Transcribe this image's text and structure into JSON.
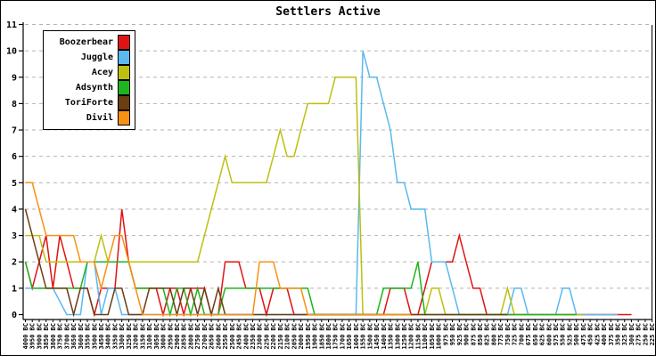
{
  "title": "Settlers Active",
  "legend": {
    "entries": [
      {
        "label": "Boozerbear",
        "color": "#e01313"
      },
      {
        "label": "Juggle",
        "color": "#5bb8f0"
      },
      {
        "label": "Acey",
        "color": "#bfbf10"
      },
      {
        "label": "Adsynth",
        "color": "#1db51d"
      },
      {
        "label": "ToriForte",
        "color": "#6b3d13"
      },
      {
        "label": "Divil",
        "color": "#f89113"
      }
    ]
  },
  "chart_data": {
    "type": "line",
    "title": "Settlers Active",
    "grid": "dashed-horizontal",
    "legend_position": "top-left",
    "ylim": [
      0,
      11
    ],
    "y_axis": {
      "min": 0,
      "max": 11,
      "tick_step": 1
    },
    "x_axis": {
      "unit": "game year (BC), one tick per turn",
      "labels": [
        "4000 BC",
        "3950 BC",
        "3900 BC",
        "3850 BC",
        "3800 BC",
        "3750 BC",
        "3700 BC",
        "3650 BC",
        "3600 BC",
        "3550 BC",
        "3500 BC",
        "3450 BC",
        "3400 BC",
        "3350 BC",
        "3300 BC",
        "3250 BC",
        "3200 BC",
        "3150 BC",
        "3100 BC",
        "3050 BC",
        "3000 BC",
        "2950 BC",
        "2900 BC",
        "2850 BC",
        "2800 BC",
        "2750 BC",
        "2700 BC",
        "2650 BC",
        "2600 BC",
        "2550 BC",
        "2500 BC",
        "2450 BC",
        "2400 BC",
        "2350 BC",
        "2300 BC",
        "2250 BC",
        "2200 BC",
        "2150 BC",
        "2100 BC",
        "2050 BC",
        "2000 BC",
        "1950 BC",
        "1900 BC",
        "1850 BC",
        "1800 BC",
        "1750 BC",
        "1700 BC",
        "1650 BC",
        "1600 BC",
        "1550 BC",
        "1500 BC",
        "1450 BC",
        "1400 BC",
        "1350 BC",
        "1300 BC",
        "1250 BC",
        "1200 BC",
        "1150 BC",
        "1100 BC",
        "1050 BC",
        "1000 BC",
        "975 BC",
        "950 BC",
        "925 BC",
        "900 BC",
        "875 BC",
        "850 BC",
        "825 BC",
        "800 BC",
        "775 BC",
        "750 BC",
        "725 BC",
        "700 BC",
        "675 BC",
        "650 BC",
        "625 BC",
        "600 BC",
        "575 BC",
        "550 BC",
        "525 BC",
        "500 BC",
        "475 BC",
        "450 BC",
        "425 BC",
        "400 BC",
        "375 BC",
        "350 BC",
        "325 BC",
        "300 BC",
        "275 BC",
        "250 BC",
        "225 BC"
      ]
    },
    "series": [
      {
        "name": "Boozerbear",
        "color": "#e01313",
        "points": [
          [
            0,
            2
          ],
          [
            1,
            1
          ],
          [
            3,
            3
          ],
          [
            4,
            1
          ],
          [
            5,
            3
          ],
          [
            6,
            2
          ],
          [
            7,
            1
          ],
          [
            9,
            1
          ],
          [
            10,
            0
          ],
          [
            11,
            1
          ],
          [
            13,
            1
          ],
          [
            14,
            4
          ],
          [
            15,
            2
          ],
          [
            16,
            1
          ],
          [
            19,
            1
          ],
          [
            20,
            0
          ],
          [
            21,
            1
          ],
          [
            22,
            1
          ],
          [
            23,
            0
          ],
          [
            24,
            1
          ],
          [
            26,
            1
          ],
          [
            27,
            0
          ],
          [
            28,
            0
          ],
          [
            29,
            2
          ],
          [
            31,
            2
          ],
          [
            32,
            1
          ],
          [
            34,
            1
          ],
          [
            35,
            0
          ],
          [
            36,
            1
          ],
          [
            38,
            1
          ],
          [
            39,
            0
          ],
          [
            52,
            0
          ],
          [
            53,
            1
          ],
          [
            55,
            1
          ],
          [
            56,
            0
          ],
          [
            57,
            0
          ],
          [
            58,
            1
          ],
          [
            59,
            2
          ],
          [
            62,
            2
          ],
          [
            63,
            3
          ],
          [
            64,
            2
          ],
          [
            65,
            1
          ],
          [
            66,
            1
          ],
          [
            67,
            0
          ],
          [
            88,
            0
          ]
        ]
      },
      {
        "name": "Juggle",
        "color": "#5bb8f0",
        "points": [
          [
            0,
            1
          ],
          [
            4,
            1
          ],
          [
            6,
            0
          ],
          [
            8,
            0
          ],
          [
            9,
            2
          ],
          [
            10,
            2
          ],
          [
            11,
            0
          ],
          [
            12,
            1
          ],
          [
            13,
            1
          ],
          [
            14,
            0
          ],
          [
            47,
            0
          ],
          [
            48,
            0
          ],
          [
            49,
            10
          ],
          [
            50,
            9
          ],
          [
            51,
            9
          ],
          [
            52,
            8
          ],
          [
            53,
            7
          ],
          [
            54,
            5
          ],
          [
            55,
            5
          ],
          [
            56,
            4
          ],
          [
            58,
            4
          ],
          [
            59,
            2
          ],
          [
            61,
            2
          ],
          [
            62,
            1
          ],
          [
            63,
            0
          ],
          [
            70,
            0
          ],
          [
            71,
            1
          ],
          [
            72,
            1
          ],
          [
            73,
            0
          ],
          [
            77,
            0
          ],
          [
            78,
            1
          ],
          [
            79,
            1
          ],
          [
            80,
            0
          ],
          [
            86,
            0
          ]
        ]
      },
      {
        "name": "Acey",
        "color": "#bfbf10",
        "points": [
          [
            0,
            3
          ],
          [
            2,
            3
          ],
          [
            3,
            2
          ],
          [
            10,
            2
          ],
          [
            11,
            3
          ],
          [
            12,
            2
          ],
          [
            25,
            2
          ],
          [
            26,
            3
          ],
          [
            27,
            4
          ],
          [
            28,
            5
          ],
          [
            29,
            6
          ],
          [
            30,
            5
          ],
          [
            35,
            5
          ],
          [
            36,
            6
          ],
          [
            37,
            7
          ],
          [
            38,
            6
          ],
          [
            39,
            6
          ],
          [
            40,
            7
          ],
          [
            41,
            8
          ],
          [
            44,
            8
          ],
          [
            45,
            9
          ],
          [
            48,
            9
          ],
          [
            49,
            0
          ],
          [
            58,
            0
          ],
          [
            59,
            1
          ],
          [
            60,
            1
          ],
          [
            61,
            0
          ],
          [
            69,
            0
          ],
          [
            70,
            1
          ],
          [
            71,
            0
          ],
          [
            81,
            0
          ]
        ]
      },
      {
        "name": "Adsynth",
        "color": "#1db51d",
        "points": [
          [
            0,
            2
          ],
          [
            1,
            1
          ],
          [
            8,
            1
          ],
          [
            9,
            2
          ],
          [
            15,
            2
          ],
          [
            16,
            1
          ],
          [
            20,
            1
          ],
          [
            21,
            0
          ],
          [
            22,
            1
          ],
          [
            23,
            1
          ],
          [
            24,
            0
          ],
          [
            25,
            1
          ],
          [
            26,
            0
          ],
          [
            28,
            0
          ],
          [
            29,
            1
          ],
          [
            41,
            1
          ],
          [
            42,
            0
          ],
          [
            51,
            0
          ],
          [
            52,
            1
          ],
          [
            56,
            1
          ],
          [
            57,
            2
          ],
          [
            58,
            0
          ],
          [
            80,
            0
          ]
        ]
      },
      {
        "name": "ToriForte",
        "color": "#6b3d13",
        "points": [
          [
            0,
            4
          ],
          [
            1,
            3
          ],
          [
            3,
            1
          ],
          [
            6,
            1
          ],
          [
            7,
            0
          ],
          [
            8,
            1
          ],
          [
            9,
            1
          ],
          [
            10,
            0
          ],
          [
            12,
            0
          ],
          [
            13,
            1
          ],
          [
            14,
            1
          ],
          [
            15,
            0
          ],
          [
            17,
            0
          ],
          [
            18,
            1
          ],
          [
            21,
            1
          ],
          [
            22,
            0
          ],
          [
            23,
            1
          ],
          [
            24,
            1
          ],
          [
            25,
            0
          ],
          [
            26,
            1
          ],
          [
            27,
            0
          ],
          [
            28,
            1
          ],
          [
            29,
            0
          ],
          [
            70,
            0
          ]
        ]
      },
      {
        "name": "Divil",
        "color": "#f89113",
        "points": [
          [
            0,
            5
          ],
          [
            1,
            5
          ],
          [
            3,
            3
          ],
          [
            7,
            3
          ],
          [
            8,
            2
          ],
          [
            10,
            2
          ],
          [
            11,
            1
          ],
          [
            12,
            2
          ],
          [
            13,
            3
          ],
          [
            14,
            3
          ],
          [
            15,
            2
          ],
          [
            17,
            0
          ],
          [
            33,
            0
          ],
          [
            34,
            2
          ],
          [
            36,
            2
          ],
          [
            37,
            1
          ],
          [
            40,
            1
          ],
          [
            41,
            0
          ],
          [
            56,
            0
          ]
        ]
      }
    ]
  }
}
